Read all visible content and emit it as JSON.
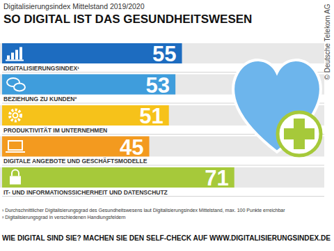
{
  "chart_data": {
    "type": "bar",
    "orientation": "horizontal",
    "subtitle": "Digitalisierungsindex Mittelstand 2019/2020",
    "title": "SO DIGITAL IST DAS GESUNDHEITSWESEN",
    "categories": [
      "DIGITALISIERUNGSINDEX¹",
      "BEZIEHUNG ZU KUNDEN²",
      "PRODUKTIVITÄT IM UNTERNEHMEN",
      "DIGITALE ANGEBOTE UND GESCHÄFTSMODELLE",
      "IT- UND INFORMATIONSSICHERHEIT UND DATENSCHUTZ"
    ],
    "values": [
      55,
      53,
      51,
      45,
      71
    ],
    "colors": [
      "#1d6cc0",
      "#3f9ddc",
      "#f6c21a",
      "#f39a1f",
      "#a6c93a"
    ],
    "xlim": [
      0,
      100
    ],
    "data_labels": true,
    "tick_labels": false,
    "footnotes": [
      "¹ Durchschnittlicher Digitalisierungsgrad des Gesundheitswesens laut Digitalisierungsindex Mittelstand, max. 100 Punkte erreichbar",
      "² Digitalisierungsgrad in verschiedenen Handlungsfeldern"
    ],
    "annotations": [
      "WIE DIGITAL SIND SIE? MACHEN SIE DEN SELF-CHECK AUF WWW.DIGITALISIERUNGSINDEX.DE",
      "© Deutsche Telekom AG"
    ]
  }
}
